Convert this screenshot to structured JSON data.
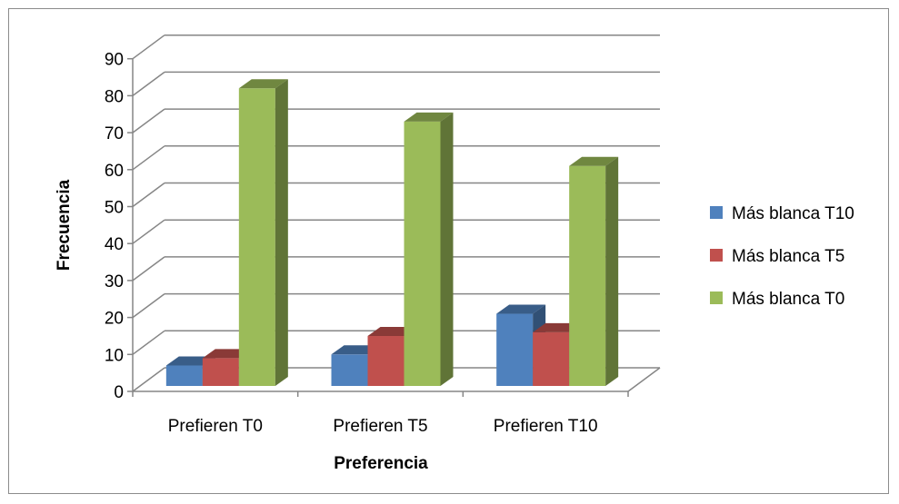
{
  "chart_data": {
    "type": "bar",
    "style": "3d-clustered-column",
    "categories": [
      "Prefieren T0",
      "Prefieren T5",
      "Prefieren T10"
    ],
    "series": [
      {
        "name": "Más blanca T10",
        "color": "#4f81bd",
        "values": [
          7,
          10,
          21
        ]
      },
      {
        "name": "Más blanca T5",
        "color": "#c0504d",
        "values": [
          9,
          15,
          16
        ]
      },
      {
        "name": "Más blanca T0",
        "color": "#9bbb59",
        "values": [
          82,
          73,
          61
        ]
      }
    ],
    "xlabel": "Preferencia",
    "ylabel": "Frecuencia",
    "ylim": [
      0,
      90
    ],
    "yticks": [
      0,
      10,
      20,
      30,
      40,
      50,
      60,
      70,
      80,
      90
    ],
    "grid": true,
    "legend_position": "right"
  }
}
